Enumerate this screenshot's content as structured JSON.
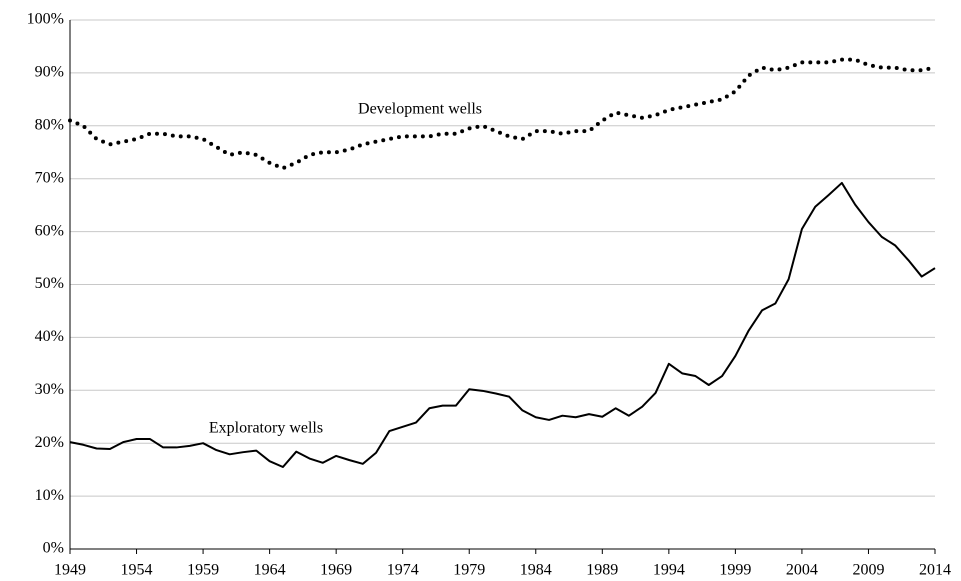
{
  "chart_data": {
    "type": "line",
    "x": [
      1949,
      1950,
      1951,
      1952,
      1953,
      1954,
      1955,
      1956,
      1957,
      1958,
      1959,
      1960,
      1961,
      1962,
      1963,
      1964,
      1965,
      1966,
      1967,
      1968,
      1969,
      1970,
      1971,
      1972,
      1973,
      1974,
      1975,
      1976,
      1977,
      1978,
      1979,
      1980,
      1981,
      1982,
      1983,
      1984,
      1985,
      1986,
      1987,
      1988,
      1989,
      1990,
      1991,
      1992,
      1993,
      1994,
      1995,
      1996,
      1997,
      1998,
      1999,
      2000,
      2001,
      2002,
      2003,
      2004,
      2005,
      2006,
      2007,
      2008,
      2009,
      2010,
      2011,
      2012,
      2013,
      2014
    ],
    "xlim": [
      1949,
      2014
    ],
    "xticks": [
      1949,
      1954,
      1959,
      1964,
      1969,
      1974,
      1979,
      1984,
      1989,
      1994,
      1999,
      2004,
      2009,
      2014
    ],
    "ylim": [
      0,
      100
    ],
    "yticks": [
      {
        "value": 0,
        "label": "0%"
      },
      {
        "value": 10,
        "label": "10%"
      },
      {
        "value": 20,
        "label": "20%"
      },
      {
        "value": 30,
        "label": "30%"
      },
      {
        "value": 40,
        "label": "40%"
      },
      {
        "value": 50,
        "label": "50%"
      },
      {
        "value": 60,
        "label": "60%"
      },
      {
        "value": 70,
        "label": "70%"
      },
      {
        "value": 80,
        "label": "80%"
      },
      {
        "value": 90,
        "label": "90%"
      },
      {
        "value": 100,
        "label": "100%"
      }
    ],
    "grid": true,
    "series": [
      {
        "name": "Development wells",
        "color": "#000000",
        "style": "dotted",
        "values": [
          81,
          80,
          77.5,
          76.5,
          77,
          77.5,
          78.5,
          78.5,
          78,
          78,
          77.5,
          76,
          74.5,
          75,
          74.5,
          73,
          72,
          73,
          74.5,
          75,
          75,
          75.5,
          76.5,
          77,
          77.5,
          78,
          78,
          78,
          78.5,
          78.5,
          79.5,
          80,
          79,
          78,
          77.5,
          79,
          79,
          78.5,
          79,
          79,
          81,
          82.5,
          82,
          81.5,
          82,
          83,
          83.5,
          84,
          84.5,
          85,
          86.5,
          89.5,
          91,
          90.5,
          91,
          92,
          92,
          92,
          92.5,
          92.5,
          91.5,
          91,
          91,
          90.5,
          90.5,
          91
        ]
      },
      {
        "name": "Exploratory wells",
        "color": "#000000",
        "style": "solid",
        "values": [
          20.2,
          19.7,
          19,
          18.9,
          20.2,
          20.8,
          20.8,
          19.2,
          19.2,
          19.5,
          20,
          18.7,
          17.9,
          18.3,
          18.6,
          16.6,
          15.5,
          18.4,
          17.1,
          16.3,
          17.6,
          16.8,
          16.1,
          18.2,
          22.3,
          23.1,
          23.9,
          26.6,
          27.1,
          27.1,
          30.2,
          29.9,
          29.4,
          28.8,
          26.2,
          24.9,
          24.4,
          25.2,
          24.9,
          25.5,
          25,
          26.6,
          25.2,
          26.9,
          29.5,
          35,
          33.2,
          32.7,
          31,
          32.7,
          36.5,
          41.3,
          45.1,
          46.4,
          51,
          60.5,
          64.7,
          66.9,
          69.2,
          65.1,
          61.8,
          59,
          57.4,
          54.6,
          51.5,
          53.1
        ]
      }
    ]
  }
}
